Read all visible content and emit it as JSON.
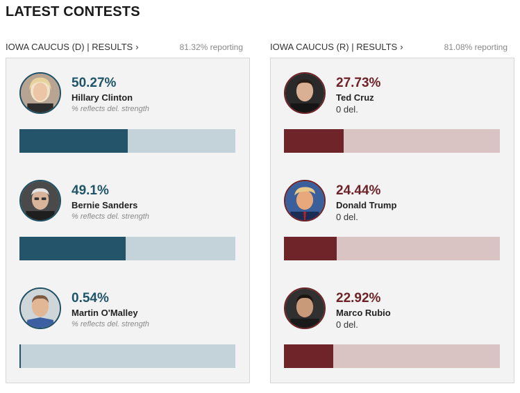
{
  "page": {
    "title": "LATEST CONTESTS"
  },
  "contests": [
    {
      "party": "dem",
      "label": "IOWA CAUCUS (D) | RESULTS",
      "chevron": "›",
      "reporting": "81.32% reporting",
      "colors": {
        "bar": "#23546a",
        "track": "#c3d3d9",
        "text": "#1f5468"
      },
      "candidates": [
        {
          "pct_label": "50.27%",
          "name": "Hillary Clinton",
          "sub": "% reflects del. strength",
          "share": 0.5027,
          "bar_fraction": 0.5027,
          "avatar": "hillary-clinton-avatar"
        },
        {
          "pct_label": "49.1%",
          "name": "Bernie Sanders",
          "sub": "% reflects del. strength",
          "share": 0.491,
          "bar_fraction": 0.491,
          "avatar": "bernie-sanders-avatar"
        },
        {
          "pct_label": "0.54%",
          "name": "Martin O'Malley",
          "sub": "% reflects del. strength",
          "share": 0.0054,
          "bar_fraction": 0.0054,
          "avatar": "martin-omalley-avatar"
        }
      ]
    },
    {
      "party": "rep",
      "label": "IOWA CAUCUS (R) | RESULTS",
      "chevron": "›",
      "reporting": "81.08% reporting",
      "colors": {
        "bar": "#6e2429",
        "track": "#d9c3c3",
        "text": "#6d2228"
      },
      "candidates": [
        {
          "pct_label": "27.73%",
          "name": "Ted Cruz",
          "sub": "0 del.",
          "share": 0.2773,
          "bar_fraction": 0.2773,
          "avatar": "ted-cruz-avatar"
        },
        {
          "pct_label": "24.44%",
          "name": "Donald Trump",
          "sub": "0 del.",
          "share": 0.2444,
          "bar_fraction": 0.2444,
          "avatar": "donald-trump-avatar"
        },
        {
          "pct_label": "22.92%",
          "name": "Marco Rubio",
          "sub": "0 del.",
          "share": 0.2292,
          "bar_fraction": 0.2292,
          "avatar": "marco-rubio-avatar"
        }
      ]
    }
  ]
}
